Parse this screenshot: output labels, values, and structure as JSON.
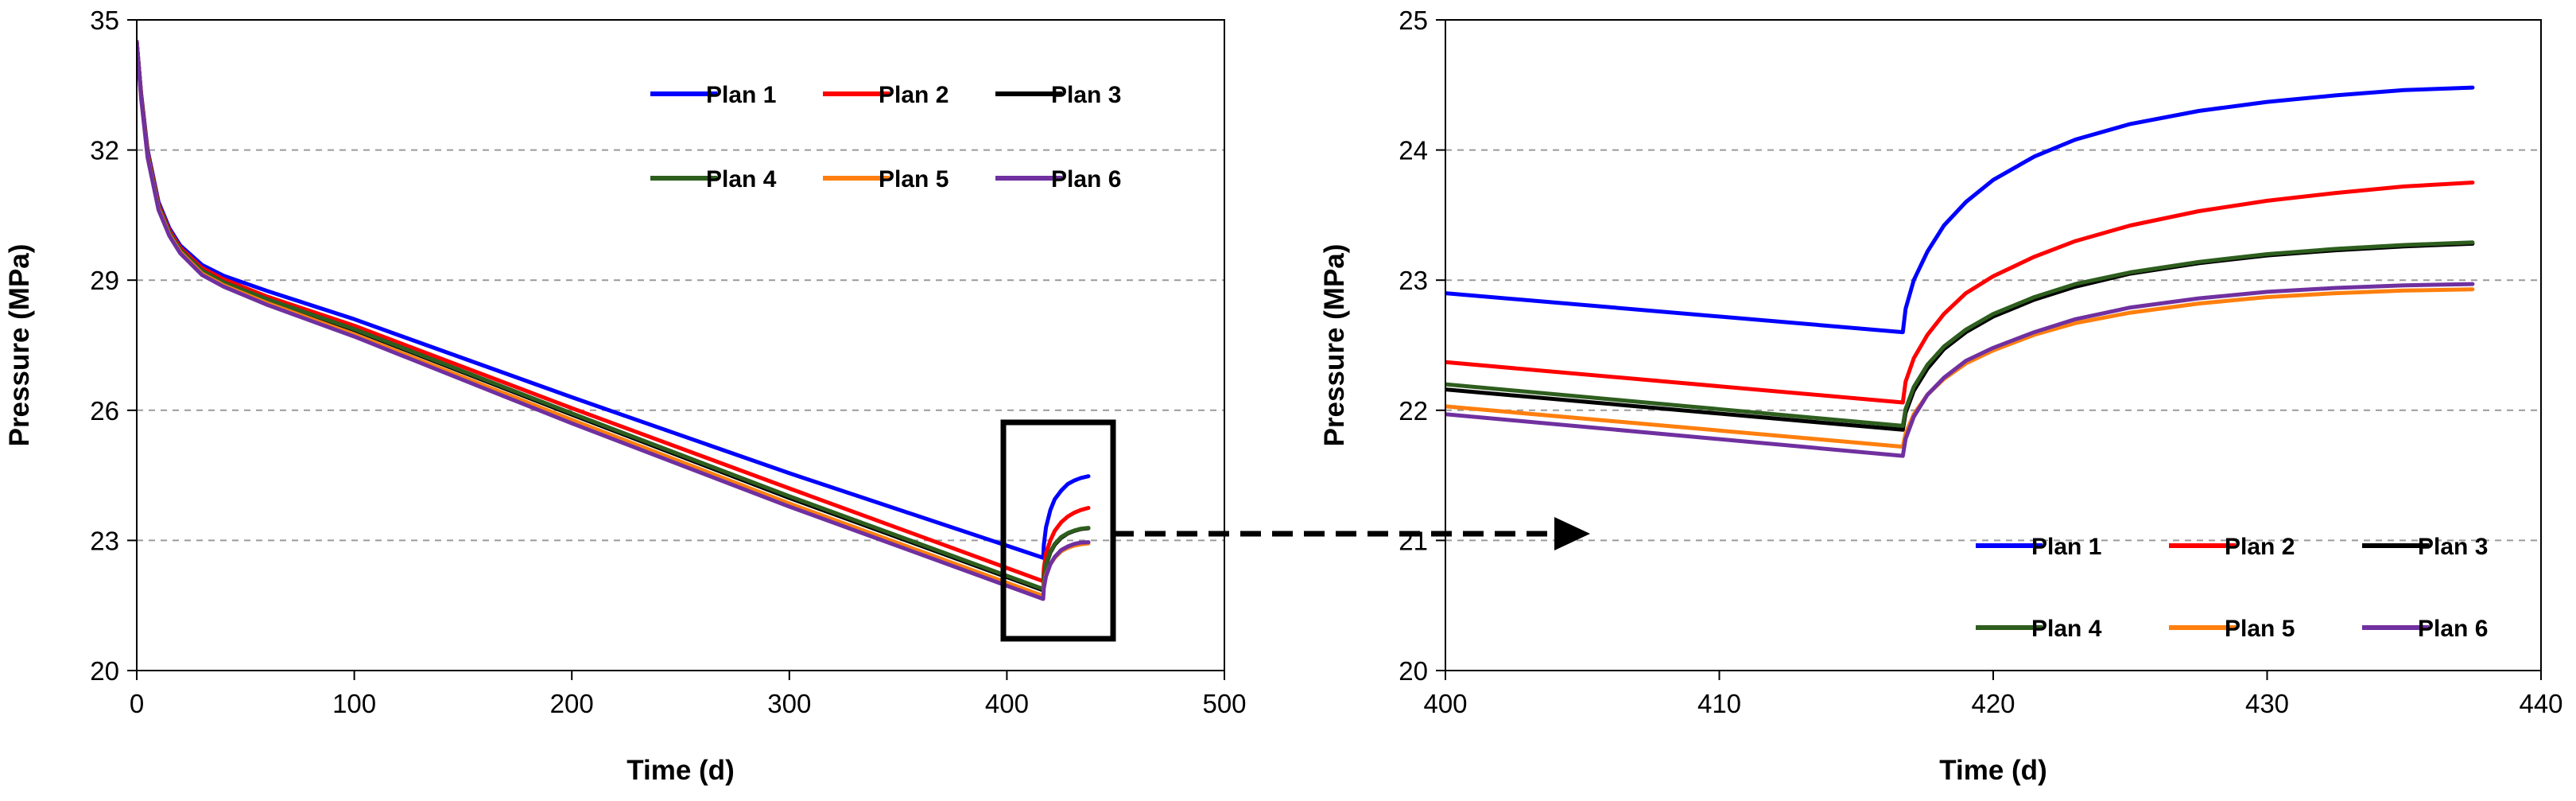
{
  "chart_data": [
    {
      "type": "line",
      "id": "overview",
      "xlabel": "Time (d)",
      "ylabel": "Pressure (MPa)",
      "xlim": [
        0,
        500
      ],
      "ylim": [
        20,
        35
      ],
      "xticks": [
        0,
        100,
        200,
        300,
        400,
        500
      ],
      "yticks": [
        20,
        23,
        26,
        29,
        32,
        35
      ],
      "grid": "horizontal-dashed",
      "legend_position": "top-right",
      "series": [
        {
          "name": "Plan 1",
          "color": "#0000ff",
          "x": [
            0,
            2,
            5,
            10,
            15,
            20,
            30,
            40,
            60,
            100,
            200,
            300,
            416.7,
            417,
            418,
            420,
            422,
            425,
            428,
            431,
            434,
            437.5
          ],
          "y": [
            34.5,
            33.3,
            32.0,
            30.8,
            30.2,
            29.8,
            29.35,
            29.1,
            28.75,
            28.1,
            26.3,
            24.55,
            22.6,
            22.9,
            23.3,
            23.7,
            23.95,
            24.15,
            24.3,
            24.38,
            24.44,
            24.48
          ]
        },
        {
          "name": "Plan 2",
          "color": "#ff0000",
          "x": [
            0,
            2,
            5,
            10,
            15,
            20,
            30,
            40,
            60,
            100,
            200,
            300,
            416.7,
            417,
            418,
            420,
            422,
            425,
            428,
            431,
            434,
            437.5
          ],
          "y": [
            34.5,
            33.3,
            31.95,
            30.75,
            30.15,
            29.75,
            29.28,
            29.02,
            28.62,
            27.95,
            26.05,
            24.2,
            22.06,
            22.35,
            22.7,
            23.0,
            23.22,
            23.42,
            23.55,
            23.64,
            23.7,
            23.75
          ]
        },
        {
          "name": "Plan 3",
          "color": "#000000",
          "x": [
            0,
            2,
            5,
            10,
            15,
            20,
            30,
            40,
            60,
            100,
            200,
            300,
            416.7,
            417,
            418,
            420,
            422,
            425,
            428,
            431,
            434,
            437.5
          ],
          "y": [
            34.5,
            33.25,
            31.9,
            30.7,
            30.1,
            29.7,
            29.22,
            28.95,
            28.55,
            27.85,
            25.9,
            23.98,
            21.85,
            22.1,
            22.42,
            22.72,
            22.9,
            23.06,
            23.16,
            23.22,
            23.26,
            23.28
          ]
        },
        {
          "name": "Plan 4",
          "color": "#2e5e1e",
          "x": [
            0,
            2,
            5,
            10,
            15,
            20,
            30,
            40,
            60,
            100,
            200,
            300,
            416.7,
            417,
            418,
            420,
            422,
            425,
            428,
            431,
            434,
            437.5
          ],
          "y": [
            34.5,
            33.25,
            31.9,
            30.7,
            30.1,
            29.7,
            29.22,
            28.95,
            28.56,
            27.87,
            25.93,
            24.02,
            21.88,
            22.13,
            22.45,
            22.74,
            22.92,
            23.08,
            23.17,
            23.23,
            23.27,
            23.29
          ]
        },
        {
          "name": "Plan 5",
          "color": "#ff7f0e",
          "x": [
            0,
            2,
            5,
            10,
            15,
            20,
            30,
            40,
            60,
            100,
            200,
            300,
            416.7,
            417,
            418,
            420,
            422,
            425,
            428,
            431,
            434,
            437.5
          ],
          "y": [
            34.5,
            33.2,
            31.85,
            30.65,
            30.05,
            29.65,
            29.15,
            28.88,
            28.47,
            27.75,
            25.78,
            23.85,
            21.72,
            21.95,
            22.2,
            22.45,
            22.6,
            22.75,
            22.83,
            22.88,
            22.91,
            22.93
          ]
        },
        {
          "name": "Plan 6",
          "color": "#7030a0",
          "x": [
            0,
            2,
            5,
            10,
            15,
            20,
            30,
            40,
            60,
            100,
            200,
            300,
            416.7,
            417,
            418,
            420,
            422,
            425,
            428,
            431,
            434,
            437.5
          ],
          "y": [
            34.5,
            33.2,
            31.82,
            30.62,
            30.02,
            29.62,
            29.12,
            28.85,
            28.43,
            27.7,
            25.7,
            23.78,
            21.65,
            21.9,
            22.17,
            22.45,
            22.62,
            22.78,
            22.86,
            22.92,
            22.95,
            22.96
          ]
        }
      ]
    },
    {
      "type": "line",
      "id": "zoom",
      "xlabel": "Time (d)",
      "ylabel": "Pressure (MPa)",
      "xlim": [
        400,
        440
      ],
      "ylim": [
        20,
        25
      ],
      "xticks": [
        400,
        410,
        420,
        430,
        440
      ],
      "yticks": [
        20,
        21,
        22,
        23,
        24,
        25
      ],
      "grid": "horizontal-dashed",
      "legend_position": "bottom-right",
      "series": [
        {
          "name": "Plan 1",
          "color": "#0000ff",
          "x": [
            400,
            416.7,
            416.8,
            417.1,
            417.6,
            418.2,
            419,
            420,
            421.5,
            423,
            425,
            427.5,
            430,
            432.5,
            435,
            437.5
          ],
          "y": [
            22.9,
            22.6,
            22.78,
            23.0,
            23.22,
            23.42,
            23.6,
            23.77,
            23.95,
            24.08,
            24.2,
            24.3,
            24.37,
            24.42,
            24.46,
            24.48
          ]
        },
        {
          "name": "Plan 2",
          "color": "#ff0000",
          "x": [
            400,
            416.7,
            416.8,
            417.1,
            417.6,
            418.2,
            419,
            420,
            421.5,
            423,
            425,
            427.5,
            430,
            432.5,
            435,
            437.5
          ],
          "y": [
            22.37,
            22.06,
            22.22,
            22.4,
            22.58,
            22.74,
            22.9,
            23.03,
            23.18,
            23.3,
            23.42,
            23.53,
            23.61,
            23.67,
            23.72,
            23.75
          ]
        },
        {
          "name": "Plan 3",
          "color": "#000000",
          "x": [
            400,
            416.7,
            416.8,
            417.1,
            417.6,
            418.2,
            419,
            420,
            421.5,
            423,
            425,
            427.5,
            430,
            432.5,
            435,
            437.5
          ],
          "y": [
            22.16,
            21.85,
            21.98,
            22.15,
            22.32,
            22.47,
            22.6,
            22.72,
            22.85,
            22.95,
            23.05,
            23.13,
            23.19,
            23.23,
            23.26,
            23.28
          ]
        },
        {
          "name": "Plan 4",
          "color": "#2e5e1e",
          "x": [
            400,
            416.7,
            416.8,
            417.1,
            417.6,
            418.2,
            419,
            420,
            421.5,
            423,
            425,
            427.5,
            430,
            432.5,
            435,
            437.5
          ],
          "y": [
            22.2,
            21.88,
            22.01,
            22.18,
            22.35,
            22.49,
            22.62,
            22.74,
            22.87,
            22.97,
            23.06,
            23.14,
            23.2,
            23.24,
            23.27,
            23.29
          ]
        },
        {
          "name": "Plan 5",
          "color": "#ff7f0e",
          "x": [
            400,
            416.7,
            416.8,
            417.1,
            417.6,
            418.2,
            419,
            420,
            421.5,
            423,
            425,
            427.5,
            430,
            432.5,
            435,
            437.5
          ],
          "y": [
            22.03,
            21.72,
            21.82,
            21.97,
            22.12,
            22.24,
            22.36,
            22.46,
            22.58,
            22.67,
            22.75,
            22.82,
            22.87,
            22.9,
            22.92,
            22.93
          ]
        },
        {
          "name": "Plan 6",
          "color": "#7030a0",
          "x": [
            400,
            416.7,
            416.8,
            417.1,
            417.6,
            418.2,
            419,
            420,
            421.5,
            423,
            425,
            427.5,
            430,
            432.5,
            435,
            437.5
          ],
          "y": [
            21.97,
            21.65,
            21.78,
            21.95,
            22.12,
            22.25,
            22.38,
            22.48,
            22.6,
            22.7,
            22.79,
            22.86,
            22.91,
            22.94,
            22.96,
            22.97
          ]
        }
      ]
    }
  ]
}
